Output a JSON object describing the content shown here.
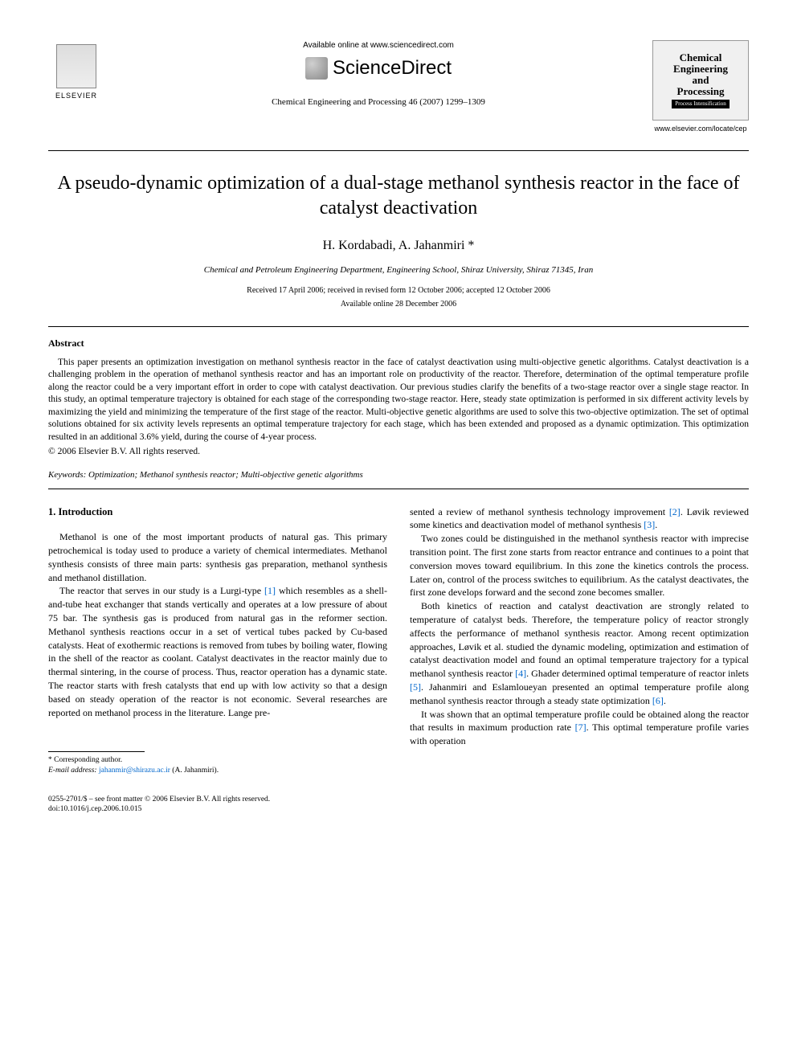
{
  "header": {
    "elsevier_label": "ELSEVIER",
    "available_online": "Available online at www.sciencedirect.com",
    "sciencedirect": "ScienceDirect",
    "journal_reference": "Chemical Engineering and Processing 46 (2007) 1299–1309",
    "cover_title_line1": "Chemical",
    "cover_title_line2": "Engineering",
    "cover_title_line3": "and",
    "cover_title_line4": "Processing",
    "cover_subtitle": "Process Intensification",
    "cover_url": "www.elsevier.com/locate/cep"
  },
  "article": {
    "title": "A pseudo-dynamic optimization of a dual-stage methanol synthesis reactor in the face of catalyst deactivation",
    "authors": "H. Kordabadi, A. Jahanmiri *",
    "affiliation": "Chemical and Petroleum Engineering Department, Engineering School, Shiraz University, Shiraz 71345, Iran",
    "received": "Received 17 April 2006; received in revised form 12 October 2006; accepted 12 October 2006",
    "available": "Available online 28 December 2006"
  },
  "abstract": {
    "heading": "Abstract",
    "text": "This paper presents an optimization investigation on methanol synthesis reactor in the face of catalyst deactivation using multi-objective genetic algorithms. Catalyst deactivation is a challenging problem in the operation of methanol synthesis reactor and has an important role on productivity of the reactor. Therefore, determination of the optimal temperature profile along the reactor could be a very important effort in order to cope with catalyst deactivation. Our previous studies clarify the benefits of a two-stage reactor over a single stage reactor. In this study, an optimal temperature trajectory is obtained for each stage of the corresponding two-stage reactor. Here, steady state optimization is performed in six different activity levels by maximizing the yield and minimizing the temperature of the first stage of the reactor. Multi-objective genetic algorithms are used to solve this two-objective optimization. The set of optimal solutions obtained for six activity levels represents an optimal temperature trajectory for each stage, which has been extended and proposed as a dynamic optimization. This optimization resulted in an additional 3.6% yield, during the course of 4-year process.",
    "copyright": "© 2006 Elsevier B.V. All rights reserved.",
    "keywords_label": "Keywords:",
    "keywords_text": " Optimization; Methanol synthesis reactor; Multi-objective genetic algorithms"
  },
  "body": {
    "section_heading": "1.  Introduction",
    "left_p1": "Methanol is one of the most important products of natural gas. This primary petrochemical is today used to produce a variety of chemical intermediates. Methanol synthesis consists of three main parts: synthesis gas preparation, methanol synthesis and methanol distillation.",
    "left_p2a": "The reactor that serves in our study is a Lurgi-type ",
    "ref1": "[1]",
    "left_p2b": " which resembles as a shell-and-tube heat exchanger that stands vertically and operates at a low pressure of about 75 bar. The synthesis gas is produced from natural gas in the reformer section. Methanol synthesis reactions occur in a set of vertical tubes packed by Cu-based catalysts. Heat of exothermic reactions is removed from tubes by boiling water, flowing in the shell of the reactor as coolant. Catalyst deactivates in the reactor mainly due to thermal sintering, in the course of process. Thus, reactor operation has a dynamic state. The reactor starts with fresh catalysts that end up with low activity so that a design based on steady operation of the reactor is not economic. Several researches are reported on methanol process in the literature. Lange pre-",
    "right_p1a": "sented a review of methanol synthesis technology improvement ",
    "ref2": "[2]",
    "right_p1b": ". Løvik reviewed some kinetics and deactivation model of methanol synthesis ",
    "ref3": "[3]",
    "right_p1c": ".",
    "right_p2": "Two zones could be distinguished in the methanol synthesis reactor with imprecise transition point. The first zone starts from reactor entrance and continues to a point that conversion moves toward equilibrium. In this zone the kinetics controls the process. Later on, control of the process switches to equilibrium. As the catalyst deactivates, the first zone develops forward and the second zone becomes smaller.",
    "right_p3a": "Both kinetics of reaction and catalyst deactivation are strongly related to temperature of catalyst beds. Therefore, the temperature policy of reactor strongly affects the performance of methanol synthesis reactor. Among recent optimization approaches, Løvik et al. studied the dynamic modeling, optimization and estimation of catalyst deactivation model and found an optimal temperature trajectory for a typical methanol synthesis reactor ",
    "ref4": "[4]",
    "right_p3b": ". Ghader determined optimal temperature of reactor inlets ",
    "ref5": "[5]",
    "right_p3c": ". Jahanmiri and Eslamloueyan presented an optimal temperature profile along methanol synthesis reactor through a steady state optimization ",
    "ref6": "[6]",
    "right_p3d": ".",
    "right_p4a": "It was shown that an optimal temperature profile could be obtained along the reactor that results in maximum production rate ",
    "ref7": "[7]",
    "right_p4b": ". This optimal temperature profile varies with operation"
  },
  "footnote": {
    "corresponding": "* Corresponding author.",
    "email_label": "E-mail address:",
    "email": "jahanmir@shirazu.ac.ir",
    "email_suffix": " (A. Jahanmiri)."
  },
  "footer": {
    "line1": "0255-2701/$ – see front matter © 2006 Elsevier B.V. All rights reserved.",
    "line2": "doi:10.1016/j.cep.2006.10.015"
  },
  "colors": {
    "link": "#0066cc",
    "text": "#000000",
    "background": "#ffffff"
  }
}
